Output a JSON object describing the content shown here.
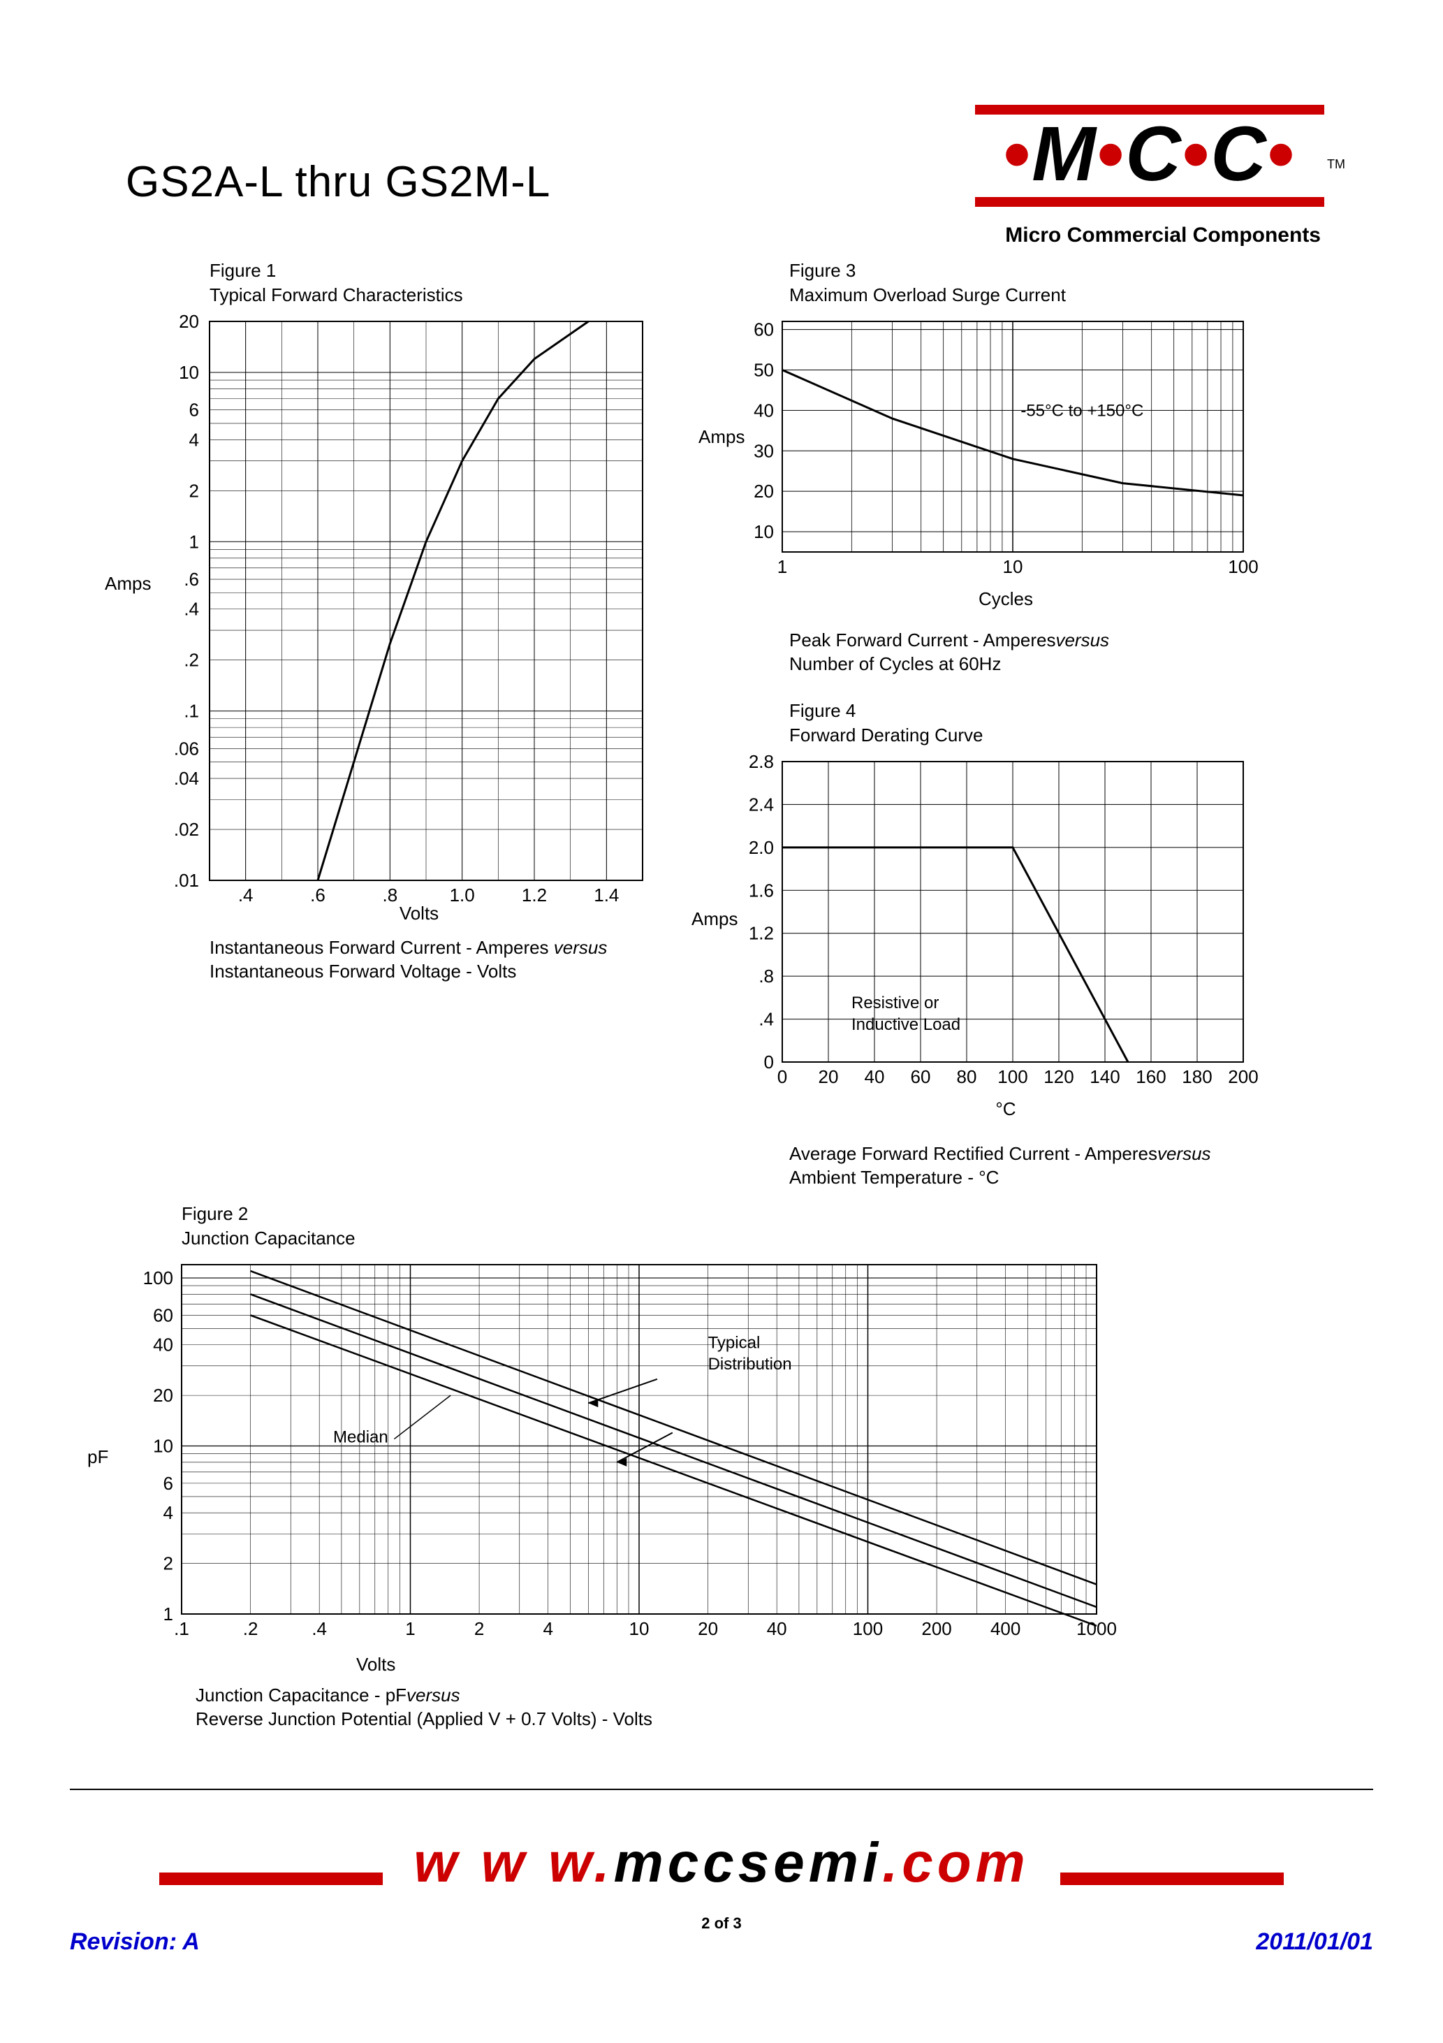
{
  "header": {
    "title": "GS2A-L thru GS2M-L",
    "logo_letters": "M C C",
    "logo_sub": "Micro Commercial Components",
    "tm": "TM"
  },
  "footer": {
    "url_prefix": "w w w.",
    "url_mid": "mccsemi",
    "url_suffix": ".com",
    "page": "2 of 3",
    "revision": "Revision: A",
    "date": "2011/01/01"
  },
  "fig1": {
    "label": "Figure 1",
    "title": "Typical Forward Characteristics",
    "ylabel": "Amps",
    "xlabel": "Volts",
    "caption1": "Instantaneous Forward Current - Amperes",
    "caption_versus": "versus",
    "caption2": "Instantaneous Forward Voltage - Volts",
    "x_ticks": [
      ".4",
      ".6",
      ".8",
      "1.0",
      "1.2",
      "1.4"
    ],
    "y_ticks": [
      ".01",
      ".02",
      ".04",
      ".06",
      ".1",
      ".2",
      ".4",
      ".6",
      "1",
      "2",
      "4",
      "6",
      "10",
      "20"
    ],
    "curve": [
      {
        "x": 0.6,
        "y": 0.01
      },
      {
        "x": 0.7,
        "y": 0.05
      },
      {
        "x": 0.8,
        "y": 0.25
      },
      {
        "x": 0.9,
        "y": 1.0
      },
      {
        "x": 1.0,
        "y": 3.0
      },
      {
        "x": 1.1,
        "y": 7.0
      },
      {
        "x": 1.2,
        "y": 12.0
      },
      {
        "x": 1.35,
        "y": 20.0
      }
    ]
  },
  "fig2": {
    "label": "Figure 2",
    "title": "Junction Capacitance",
    "ylabel": "pF",
    "xlabel": "Volts",
    "caption1": "Junction Capacitance - pF",
    "caption_versus": "versus",
    "caption2": "Reverse Junction Potential (Applied V + 0.7 Volts) - Volts",
    "annot_median": "Median",
    "annot_typical1": "Typical",
    "annot_typical2": "Distribution",
    "x_ticks": [
      ".1",
      ".2",
      ".4",
      "1",
      "2",
      "4",
      "10",
      "20",
      "40",
      "100",
      "200",
      "400",
      "1000"
    ],
    "y_ticks": [
      "1",
      "2",
      "4",
      "6",
      "10",
      "20",
      "40",
      "60",
      "100"
    ]
  },
  "fig3": {
    "label": "Figure 3",
    "title": "Maximum Overload Surge Current",
    "ylabel": "Amps",
    "xlabel": "Cycles",
    "annot": "-55°C to +150°C",
    "caption1": "Peak Forward Current - Amperes",
    "caption_versus": "versus",
    "caption2": "Number of Cycles at 60Hz",
    "y_ticks": [
      "10",
      "20",
      "30",
      "40",
      "50",
      "60"
    ],
    "x_ticks": [
      "1",
      "10",
      "100"
    ],
    "curve": [
      {
        "x": 1,
        "y": 50
      },
      {
        "x": 3,
        "y": 38
      },
      {
        "x": 10,
        "y": 28
      },
      {
        "x": 30,
        "y": 22
      },
      {
        "x": 100,
        "y": 19
      }
    ]
  },
  "fig4": {
    "label": "Figure 4",
    "title": "Forward Derating Curve",
    "ylabel": "Amps",
    "xlabel": "°C",
    "annot1": "Resistive or",
    "annot2": "Inductive Load",
    "caption1": "Average Forward Rectified Current  -  Amperes",
    "caption_versus": "versus",
    "caption2": "Ambient Temperature  - °C",
    "y_ticks": [
      "0",
      ".4",
      ".8",
      "1.2",
      "1.6",
      "2.0",
      "2.4",
      "2.8"
    ],
    "x_ticks": [
      "0",
      "20",
      "40",
      "60",
      "80",
      "100",
      "120",
      "140",
      "160",
      "180",
      "200"
    ],
    "curve": [
      {
        "x": 0,
        "y": 2.0
      },
      {
        "x": 100,
        "y": 2.0
      },
      {
        "x": 150,
        "y": 0
      }
    ]
  },
  "colors": {
    "red": "#cc0000",
    "blue": "#0000cc",
    "black": "#000000",
    "grid": "#000000"
  }
}
